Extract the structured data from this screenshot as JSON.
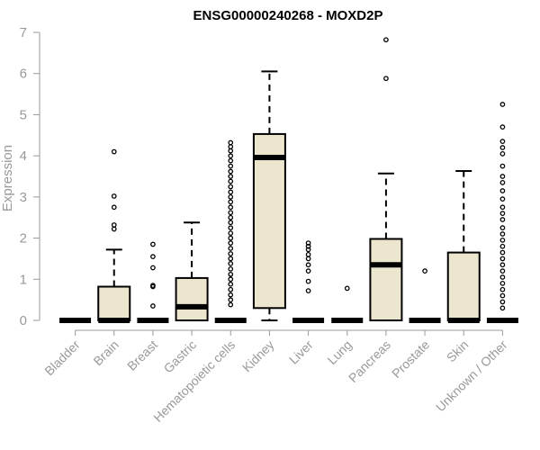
{
  "chart_data": {
    "type": "box",
    "title": "ENSG00000240268 - MOXD2P",
    "xlabel": "",
    "ylabel": "Expression",
    "ylim": [
      0,
      7
    ],
    "yticks": [
      0,
      1,
      2,
      3,
      4,
      5,
      6,
      7
    ],
    "colors": {
      "box_fill": "#ede6ce",
      "line": "#000000",
      "axis": "#999999"
    },
    "categories": [
      "Bladder",
      "Brain",
      "Breast",
      "Gastric",
      "Hematopoietic cells",
      "Kidney",
      "Liver",
      "Lung",
      "Pancreas",
      "Prostate",
      "Skin",
      "Unknown / Other"
    ],
    "boxes": [
      {
        "name": "Bladder",
        "q1": 0,
        "median": 0,
        "q3": 0,
        "whisker_low": 0,
        "whisker_high": 0,
        "outliers": []
      },
      {
        "name": "Brain",
        "q1": 0,
        "median": 0,
        "q3": 0.82,
        "whisker_low": 0,
        "whisker_high": 1.72,
        "outliers": [
          2.22,
          2.32,
          2.75,
          3.02,
          4.1
        ]
      },
      {
        "name": "Breast",
        "q1": 0,
        "median": 0,
        "q3": 0,
        "whisker_low": 0,
        "whisker_high": 0,
        "outliers": [
          0.35,
          0.82,
          0.85,
          1.28,
          1.55,
          1.85
        ]
      },
      {
        "name": "Gastric",
        "q1": 0,
        "median": 0.33,
        "q3": 1.03,
        "whisker_low": 0,
        "whisker_high": 2.38,
        "outliers": []
      },
      {
        "name": "Hematopoietic cells",
        "q1": 0,
        "median": 0,
        "q3": 0,
        "whisker_low": 0,
        "whisker_high": 0,
        "outliers": [
          0.38,
          0.5,
          0.62,
          0.75,
          0.88,
          1.0,
          1.12,
          1.25,
          1.38,
          1.5,
          1.62,
          1.75,
          1.88,
          2.0,
          2.12,
          2.25,
          2.38,
          2.5,
          2.62,
          2.75,
          2.88,
          3.0,
          3.12,
          3.25,
          3.38,
          3.5,
          3.62,
          3.75,
          3.88,
          4.0,
          4.12,
          4.22,
          4.32
        ]
      },
      {
        "name": "Kidney",
        "q1": 0.3,
        "median": 3.96,
        "q3": 4.53,
        "whisker_low": 0,
        "whisker_high": 6.05,
        "outliers": []
      },
      {
        "name": "Liver",
        "q1": 0,
        "median": 0,
        "q3": 0,
        "whisker_low": 0,
        "whisker_high": 0,
        "outliers": [
          0.72,
          0.95,
          1.2,
          1.35,
          1.5,
          1.6,
          1.72,
          1.8,
          1.88
        ]
      },
      {
        "name": "Lung",
        "q1": 0,
        "median": 0,
        "q3": 0,
        "whisker_low": 0,
        "whisker_high": 0,
        "outliers": [
          0.78
        ]
      },
      {
        "name": "Pancreas",
        "q1": 0,
        "median": 1.35,
        "q3": 1.98,
        "whisker_low": 0,
        "whisker_high": 3.57,
        "outliers": [
          5.88,
          6.82
        ]
      },
      {
        "name": "Prostate",
        "q1": 0,
        "median": 0,
        "q3": 0,
        "whisker_low": 0,
        "whisker_high": 0,
        "outliers": [
          1.2
        ]
      },
      {
        "name": "Skin",
        "q1": 0,
        "median": 0,
        "q3": 1.65,
        "whisker_low": 0,
        "whisker_high": 3.63,
        "outliers": []
      },
      {
        "name": "Unknown / Other",
        "q1": 0,
        "median": 0,
        "q3": 0,
        "whisker_low": 0,
        "whisker_high": 0,
        "outliers": [
          0.3,
          0.45,
          0.6,
          0.75,
          0.9,
          1.05,
          1.2,
          1.35,
          1.5,
          1.65,
          1.8,
          1.95,
          2.1,
          2.25,
          2.45,
          2.6,
          2.75,
          2.95,
          3.15,
          3.35,
          3.5,
          3.75,
          4.05,
          4.2,
          4.35,
          4.7,
          5.25
        ]
      }
    ]
  }
}
